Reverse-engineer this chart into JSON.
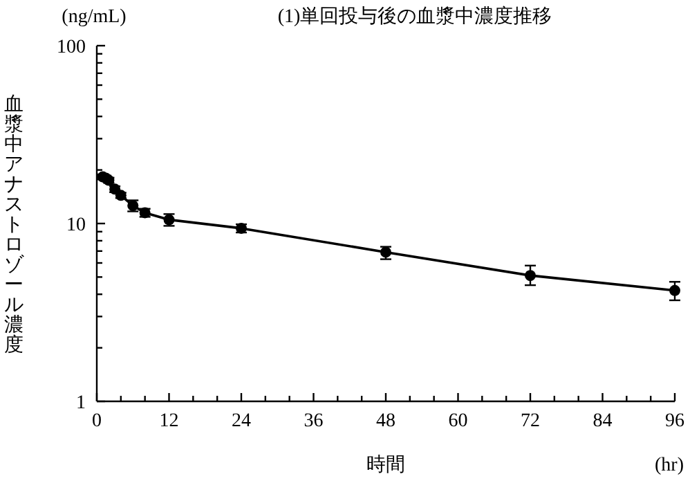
{
  "chart_data": {
    "type": "line",
    "title": "(1)単回投与後の血漿中濃度推移",
    "xlabel": "時間",
    "ylabel": "血漿中アナストロゾール濃度",
    "annotations": [
      "(ng/mL)",
      "(hr)"
    ],
    "log": "y",
    "marker": "circle",
    "line_style": "solid",
    "x": [
      1,
      1.5,
      2,
      3,
      4,
      6,
      8,
      12,
      24,
      48,
      72,
      96
    ],
    "series": [
      {
        "color": "#000000",
        "values": [
          18.3,
          18.0,
          17.5,
          15.6,
          14.4,
          12.6,
          11.5,
          10.5,
          9.4,
          6.9,
          5.1,
          4.2
        ],
        "errors": [
          0.6,
          0.6,
          0.6,
          0.6,
          0.5,
          0.9,
          0.6,
          0.8,
          0.5,
          [
            6.3,
            7.4
          ],
          [
            4.5,
            5.8
          ],
          [
            3.7,
            4.7
          ]
        ]
      }
    ],
    "xlim": [
      0,
      96
    ],
    "ylim": [
      1,
      100
    ],
    "xticks": [
      0,
      {
        "value": 4,
        "label": null
      },
      {
        "value": 8,
        "label": null
      },
      12,
      {
        "value": 16,
        "label": null
      },
      {
        "value": 20,
        "label": null
      },
      24,
      {
        "value": 28,
        "label": null
      },
      {
        "value": 32,
        "label": null
      },
      36,
      {
        "value": 40,
        "label": null
      },
      {
        "value": 44,
        "label": null
      },
      48,
      {
        "value": 52,
        "label": null
      },
      {
        "value": 56,
        "label": null
      },
      60,
      {
        "value": 64,
        "label": null
      },
      {
        "value": 68,
        "label": null
      },
      72,
      {
        "value": 76,
        "label": null
      },
      {
        "value": 80,
        "label": null
      },
      84,
      {
        "value": 88,
        "label": null
      },
      {
        "value": 92,
        "label": null
      },
      96
    ],
    "yticks": [
      1,
      {
        "value": 2,
        "label": null
      },
      {
        "value": 3,
        "label": null
      },
      {
        "value": 4,
        "label": null
      },
      {
        "value": 5,
        "label": null
      },
      {
        "value": 6,
        "label": null
      },
      {
        "value": 7,
        "label": null
      },
      {
        "value": 8,
        "label": null
      },
      {
        "value": 9,
        "label": null
      },
      10,
      {
        "value": 20,
        "label": null
      },
      {
        "value": 30,
        "label": null
      },
      {
        "value": 40,
        "label": null
      },
      {
        "value": 50,
        "label": null
      },
      {
        "value": 60,
        "label": null
      },
      {
        "value": 70,
        "label": null
      },
      {
        "value": 80,
        "label": null
      },
      {
        "value": 90,
        "label": null
      },
      100
    ]
  }
}
